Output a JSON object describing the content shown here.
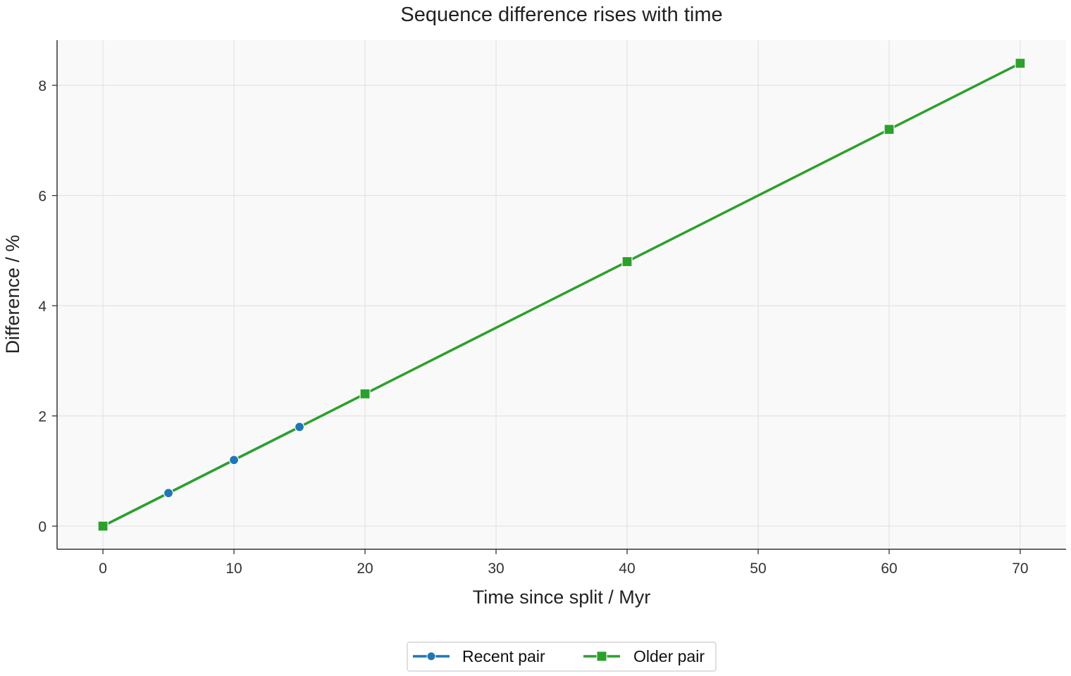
{
  "chart_data": {
    "type": "line",
    "title": "Sequence difference rises with time",
    "xlabel": "Time since split / Myr",
    "ylabel": "Difference / %",
    "xlim": [
      -3.5,
      73.5
    ],
    "ylim": [
      -0.42,
      8.82
    ],
    "xticks": [
      0,
      10,
      20,
      30,
      40,
      50,
      60,
      70
    ],
    "yticks": [
      0,
      2,
      4,
      6,
      8
    ],
    "grid": true,
    "legend_position": "bottom-center",
    "series": [
      {
        "name": "Recent pair",
        "color": "#1f77b4",
        "marker": "circle",
        "x": [
          0,
          5,
          10,
          15
        ],
        "y": [
          0,
          0.6,
          1.2,
          1.8
        ]
      },
      {
        "name": "Older pair",
        "color": "#2ca02c",
        "marker": "square",
        "x": [
          0,
          5,
          10,
          15,
          20,
          40,
          60,
          70
        ],
        "y": [
          0,
          0.6,
          1.2,
          1.8,
          2.4,
          4.8,
          7.2,
          8.4
        ],
        "marker_x": [
          0,
          20,
          40,
          60,
          70
        ],
        "marker_y": [
          0,
          2.4,
          4.8,
          7.2,
          8.4
        ]
      }
    ]
  }
}
